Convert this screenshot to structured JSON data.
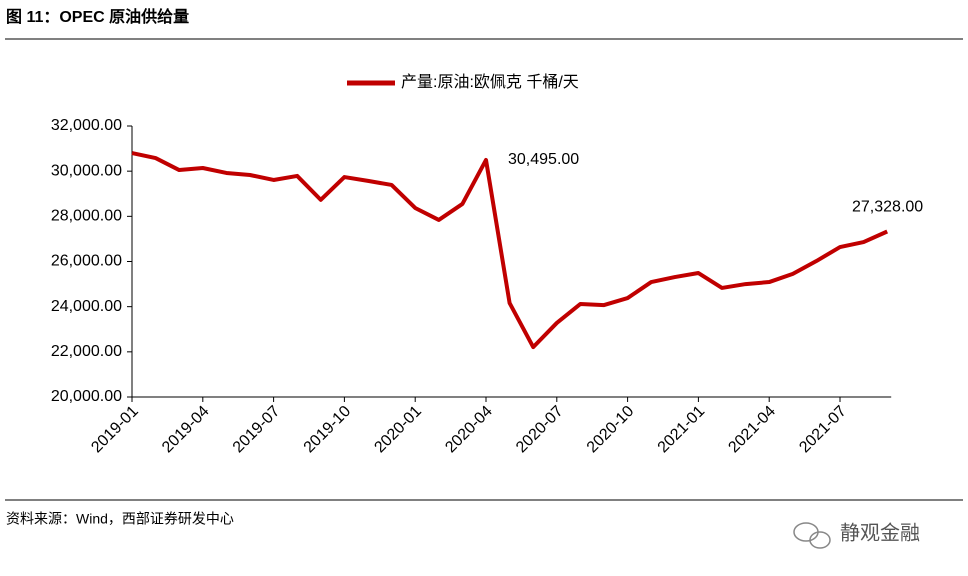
{
  "header": {
    "title": "图 11：OPEC 原油供给量"
  },
  "footer": {
    "source": "资料来源：Wind，西部证券研发中心",
    "watermark": "静观金融"
  },
  "chart_data": {
    "type": "line",
    "categories": [
      "2019-01",
      null,
      null,
      "2019-04",
      null,
      null,
      "2019-07",
      null,
      null,
      "2019-10",
      null,
      null,
      "2020-01",
      null,
      null,
      "2020-04",
      null,
      null,
      "2020-07",
      null,
      null,
      "2020-10",
      null,
      null,
      "2021-01",
      null,
      null,
      "2021-04",
      null,
      null,
      "2021-07",
      null,
      null
    ],
    "series": [
      {
        "name": "产量:原油:欧佩克 千桶/天",
        "color": "#c00000",
        "values": [
          30800,
          30580,
          30050,
          30140,
          29920,
          29830,
          29610,
          29790,
          28730,
          29740,
          29570,
          29390,
          28370,
          27840,
          28550,
          30495,
          24160,
          22210,
          23280,
          24120,
          24070,
          24380,
          25090,
          25310,
          25490,
          24830,
          25000,
          25090,
          25450,
          26020,
          26640,
          26860,
          27328
        ],
        "value_labels": [
          null,
          null,
          null,
          null,
          null,
          null,
          null,
          null,
          null,
          null,
          null,
          null,
          null,
          null,
          null,
          "30,495.00",
          null,
          null,
          null,
          null,
          null,
          null,
          null,
          null,
          null,
          null,
          null,
          null,
          null,
          null,
          null,
          null,
          "27,328.00"
        ]
      }
    ],
    "ylim": [
      20000,
      32000
    ],
    "yticks": [
      {
        "value": 20000,
        "label": "20,000.00"
      },
      {
        "value": 22000,
        "label": "22,000.00"
      },
      {
        "value": 24000,
        "label": "24,000.00"
      },
      {
        "value": 26000,
        "label": "26,000.00"
      },
      {
        "value": 28000,
        "label": "28,000.00"
      },
      {
        "value": 30000,
        "label": "30,000.00"
      },
      {
        "value": 32000,
        "label": "32,000.00"
      }
    ],
    "grid": false,
    "legend": "top"
  }
}
